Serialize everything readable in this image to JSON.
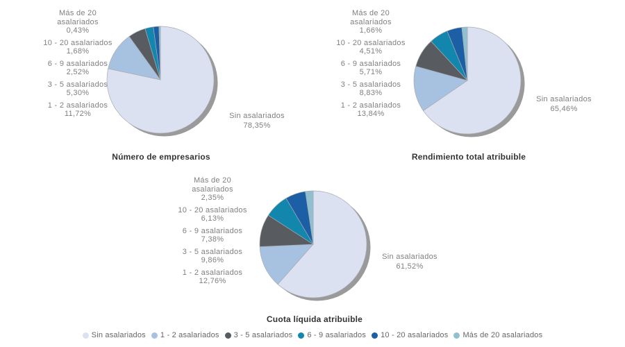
{
  "page": {
    "background_color": "#ffffff",
    "shadow_color": "#9a9a9a",
    "label_text_color": "#7f7f7f",
    "title_text_color": "#333333"
  },
  "legend": {
    "items": [
      {
        "label": "Sin asalariados",
        "color": "#dce1f1",
        "marker": "circle-icon"
      },
      {
        "label": "1 - 2 asalariados",
        "color": "#a7c2e0",
        "marker": "circle-icon"
      },
      {
        "label": "3 - 5 asalariados",
        "color": "#585c61",
        "marker": "circle-icon"
      },
      {
        "label": "6 - 9 asalariados",
        "color": "#1286ac",
        "marker": "circle-icon"
      },
      {
        "label": "10 - 20 asalariados",
        "color": "#1d5fa5",
        "marker": "circle-icon"
      },
      {
        "label": "Más de 20 asalariados",
        "color": "#90bfd0",
        "marker": "circle-icon"
      }
    ]
  },
  "chart_data": [
    {
      "type": "pie",
      "title": "Número de empresarios",
      "categories": [
        "Sin asalariados",
        "1 - 2 asalariados",
        "3 - 5 asalariados",
        "6 - 9 asalariados",
        "10 - 20 asalariados",
        "Más de 20 asalariados"
      ],
      "values": [
        78.35,
        11.72,
        5.3,
        2.52,
        1.68,
        0.43
      ],
      "value_labels": [
        "78,35%",
        "11,72%",
        "5,30%",
        "2,52%",
        "1,68%",
        "0,43%"
      ],
      "start_angle": "12-o-clock",
      "direction": "clockwise",
      "legend_position": "shared-bottom"
    },
    {
      "type": "pie",
      "title": "Rendimiento total atribuible",
      "categories": [
        "Sin asalariados",
        "1 - 2 asalariados",
        "3 - 5 asalariados",
        "6 - 9 asalariados",
        "10 - 20 asalariados",
        "Más de 20 asalariados"
      ],
      "values": [
        65.46,
        13.84,
        8.83,
        5.71,
        4.51,
        1.66
      ],
      "value_labels": [
        "65,46%",
        "13,84%",
        "8,83%",
        "5,71%",
        "4,51%",
        "1,66%"
      ],
      "start_angle": "12-o-clock",
      "direction": "clockwise",
      "legend_position": "shared-bottom"
    },
    {
      "type": "pie",
      "title": "Cuota líquida atribuible",
      "categories": [
        "Sin asalariados",
        "1 - 2 asalariados",
        "3 - 5 asalariados",
        "6 - 9 asalariados",
        "10 - 20 asalariados",
        "Más de 20 asalariados"
      ],
      "values": [
        61.52,
        12.76,
        9.86,
        7.38,
        6.13,
        2.35
      ],
      "value_labels": [
        "61,52%",
        "12,76%",
        "9,86%",
        "7,38%",
        "6,13%",
        "2,35%"
      ],
      "start_angle": "12-o-clock",
      "direction": "clockwise",
      "legend_position": "shared-bottom"
    }
  ]
}
